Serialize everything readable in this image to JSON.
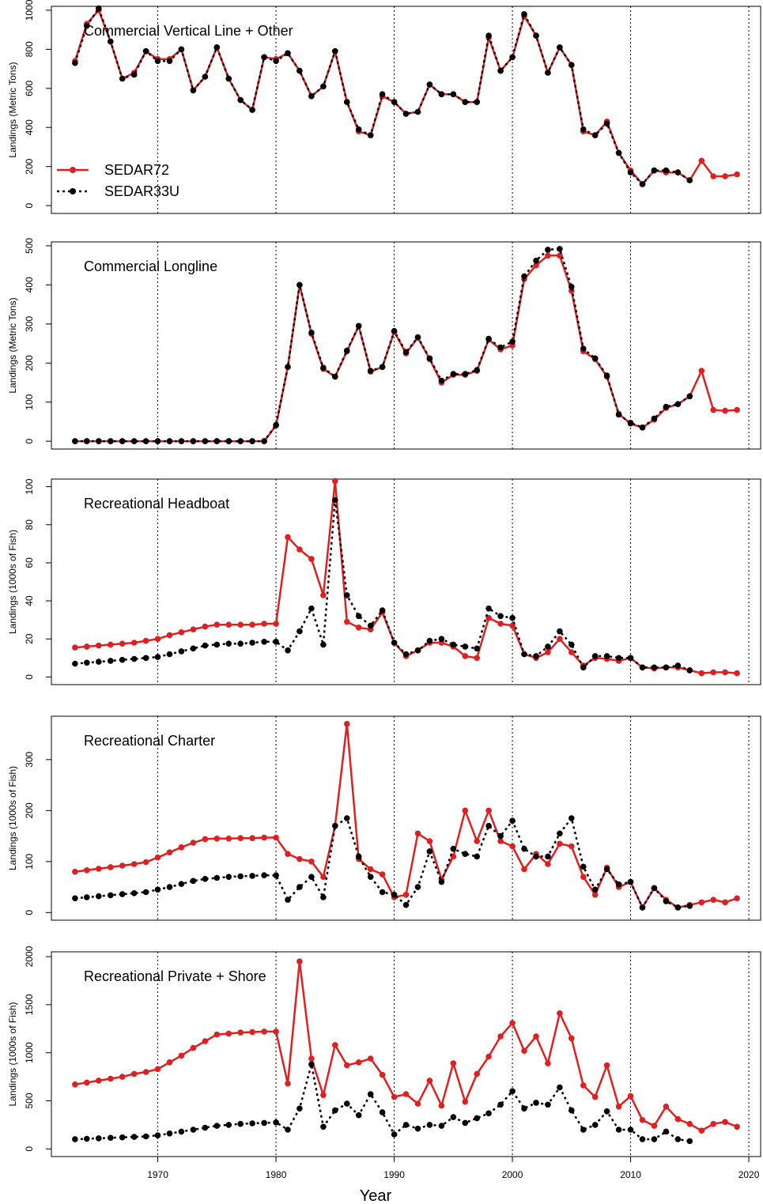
{
  "colors": {
    "sedar72": "#e02020",
    "sedar33u": "#000000",
    "axis": "#000000",
    "background": "#ffffff"
  },
  "chart_data": {
    "type": "line",
    "xlabel": "Year",
    "xlim": [
      1961,
      2021
    ],
    "x_ticks": [
      1970,
      1980,
      1990,
      2000,
      2010,
      2020
    ],
    "x_tick_labels": [
      "1970",
      "1980",
      "1990",
      "2000",
      "2010",
      "2020"
    ],
    "ref_lines": [
      1970,
      1980,
      1990,
      2000,
      2010,
      2020
    ],
    "legend": {
      "placement": "left, first panel",
      "entries": [
        {
          "name": "SEDAR72",
          "style": "solid red with points"
        },
        {
          "name": "SEDAR33U",
          "style": "dotted black with points"
        }
      ]
    },
    "panels": [
      {
        "title": "Commercial Vertical Line + Other",
        "ylabel": "Landings (Metric Tons)",
        "ylim": [
          -40,
          1020
        ],
        "y_ticks": [
          0,
          200,
          400,
          600,
          800,
          1000
        ],
        "y_tick_labels": [
          "0",
          "200",
          "400",
          "600",
          "800",
          "1000"
        ],
        "series": [
          {
            "name": "SEDAR72",
            "x_start": 1963,
            "values": [
              740,
              930,
              1000,
              840,
              650,
              680,
              790,
              750,
              750,
              800,
              590,
              660,
              810,
              650,
              540,
              490,
              760,
              750,
              780,
              690,
              560,
              610,
              790,
              530,
              380,
              360,
              560,
              530,
              470,
              480,
              620,
              570,
              570,
              530,
              530,
              860,
              690,
              760,
              970,
              870,
              680,
              810,
              720,
              380,
              360,
              430,
              270,
              180,
              110,
              180,
              170,
              170,
              130,
              230,
              150,
              150,
              160
            ]
          },
          {
            "name": "SEDAR33U",
            "x_start": 1963,
            "values": [
              730,
              920,
              1010,
              840,
              650,
              670,
              790,
              740,
              740,
              800,
              590,
              660,
              810,
              650,
              540,
              490,
              760,
              740,
              780,
              690,
              560,
              610,
              790,
              530,
              390,
              360,
              570,
              530,
              470,
              480,
              620,
              570,
              570,
              530,
              530,
              870,
              690,
              760,
              980,
              870,
              680,
              810,
              720,
              390,
              360,
              420,
              270,
              170,
              110,
              180,
              180,
              170,
              130
            ]
          }
        ]
      },
      {
        "title": "Commercial Longline",
        "ylabel": "Landings (Metric Tons)",
        "ylim": [
          -20,
          510
        ],
        "y_ticks": [
          0,
          100,
          200,
          300,
          400,
          500
        ],
        "y_tick_labels": [
          "0",
          "100",
          "200",
          "300",
          "400",
          "500"
        ],
        "series": [
          {
            "name": "SEDAR72",
            "x_start": 1963,
            "values": [
              0,
              0,
              0,
              0,
              0,
              0,
              0,
              0,
              0,
              0,
              0,
              0,
              0,
              0,
              0,
              0,
              0,
              40,
              190,
              400,
              275,
              185,
              165,
              230,
              295,
              178,
              190,
              280,
              225,
              265,
              210,
              150,
              170,
              170,
              180,
              260,
              235,
              245,
              415,
              450,
              475,
              475,
              385,
              230,
              210,
              165,
              70,
              45,
              35,
              55,
              85,
              95,
              115,
              180,
              80,
              78,
              80
            ]
          },
          {
            "name": "SEDAR33U",
            "x_start": 1963,
            "values": [
              0,
              0,
              0,
              0,
              0,
              0,
              0,
              0,
              0,
              0,
              0,
              0,
              0,
              0,
              0,
              0,
              0,
              42,
              190,
              400,
              278,
              188,
              165,
              232,
              295,
              180,
              190,
              282,
              228,
              266,
              212,
              155,
              172,
              172,
              182,
              262,
              240,
              255,
              422,
              462,
              490,
              492,
              395,
              237,
              212,
              168,
              68,
              47,
              35,
              58,
              88,
              95,
              115
            ]
          }
        ]
      },
      {
        "title": "Recreational Headboat",
        "ylabel": "Landings (1000s of Fish)",
        "ylim": [
          -4,
          104
        ],
        "y_ticks": [
          0,
          20,
          40,
          60,
          80,
          100
        ],
        "y_tick_labels": [
          "0",
          "20",
          "40",
          "60",
          "80",
          "100"
        ],
        "series": [
          {
            "name": "SEDAR72",
            "x_start": 1963,
            "values": [
              15.5,
              16,
              16.5,
              17,
              17.5,
              18,
              19,
              20,
              22,
              23.5,
              25,
              26.5,
              27.5,
              27.5,
              27.5,
              27.5,
              28,
              28,
              73.5,
              67,
              62,
              43,
              103,
              29,
              26,
              25,
              34,
              18,
              11,
              14,
              18,
              18,
              16,
              11,
              10,
              31,
              28,
              27,
              12,
              10,
              13,
              20,
              13,
              6,
              10,
              9.5,
              8.5,
              10,
              5,
              4.5,
              5,
              5,
              3.5,
              2,
              2.5,
              2.5,
              2
            ]
          },
          {
            "name": "SEDAR33U",
            "x_start": 1963,
            "values": [
              7,
              7.5,
              8,
              8.5,
              9,
              9.5,
              10,
              10.5,
              12,
              13.5,
              15,
              16.5,
              17,
              17.5,
              17.5,
              18,
              18.5,
              18.5,
              14,
              24,
              36,
              17,
              93,
              43,
              32,
              27,
              35,
              18,
              12,
              14,
              19,
              20,
              17,
              16,
              15,
              36,
              32,
              31,
              12,
              11,
              16,
              24,
              17,
              5,
              11,
              11,
              10,
              10,
              5,
              5,
              5,
              6,
              3.5
            ]
          }
        ]
      },
      {
        "title": "Recreational Charter",
        "ylabel": "Landings (1000s of Fish)",
        "ylim": [
          -15,
          385
        ],
        "y_ticks": [
          0,
          100,
          200,
          300
        ],
        "y_tick_labels": [
          "0",
          "100",
          "200",
          "300"
        ],
        "series": [
          {
            "name": "SEDAR72",
            "x_start": 1963,
            "values": [
              80,
              83,
              86,
              89,
              92,
              95,
              99,
              108,
              118,
              128,
              137,
              144,
              145,
              145,
              146,
              146,
              147,
              147,
              115,
              105,
              100,
              70,
              170,
              370,
              105,
              85,
              75,
              30,
              35,
              155,
              140,
              65,
              110,
              200,
              140,
              200,
              140,
              130,
              85,
              115,
              95,
              135,
              130,
              70,
              35,
              88,
              50,
              60,
              10,
              48,
              25,
              10,
              15,
              20,
              25,
              20,
              28
            ]
          },
          {
            "name": "SEDAR33U",
            "x_start": 1963,
            "values": [
              28,
              30,
              32,
              34,
              36,
              38,
              40,
              45,
              50,
              56,
              62,
              66,
              68,
              70,
              71,
              72,
              73,
              73,
              25,
              50,
              70,
              30,
              170,
              185,
              110,
              70,
              40,
              35,
              15,
              50,
              120,
              60,
              125,
              115,
              110,
              170,
              150,
              180,
              125,
              110,
              110,
              155,
              185,
              90,
              45,
              85,
              55,
              60,
              10,
              48,
              22,
              10,
              13
            ]
          }
        ]
      },
      {
        "title": "Recreational Private + Shore",
        "ylabel": "Landings (1000s of Fish)",
        "ylim": [
          -80,
          2050
        ],
        "y_ticks": [
          0,
          500,
          1000,
          1500,
          2000
        ],
        "y_tick_labels": [
          "0",
          "500",
          "1000",
          "1500",
          "2000"
        ],
        "series": [
          {
            "name": "SEDAR72",
            "x_start": 1963,
            "values": [
              670,
              690,
              710,
              730,
              750,
              780,
              800,
              830,
              900,
              970,
              1050,
              1120,
              1190,
              1200,
              1210,
              1215,
              1220,
              1220,
              680,
              1950,
              940,
              560,
              1080,
              870,
              900,
              940,
              770,
              540,
              570,
              470,
              710,
              450,
              890,
              490,
              780,
              960,
              1170,
              1310,
              1020,
              1170,
              890,
              1410,
              1150,
              660,
              540,
              870,
              440,
              550,
              300,
              240,
              440,
              310,
              260,
              190,
              260,
              280,
              230
            ]
          },
          {
            "name": "SEDAR33U",
            "x_start": 1963,
            "values": [
              100,
              105,
              110,
              115,
              120,
              125,
              130,
              140,
              160,
              180,
              200,
              220,
              240,
              250,
              260,
              265,
              270,
              275,
              200,
              420,
              880,
              230,
              400,
              470,
              350,
              570,
              380,
              150,
              250,
              210,
              250,
              240,
              330,
              270,
              320,
              370,
              460,
              600,
              420,
              480,
              460,
              640,
              400,
              200,
              250,
              390,
              200,
              200,
              100,
              100,
              180,
              100,
              80
            ]
          }
        ]
      }
    ]
  }
}
